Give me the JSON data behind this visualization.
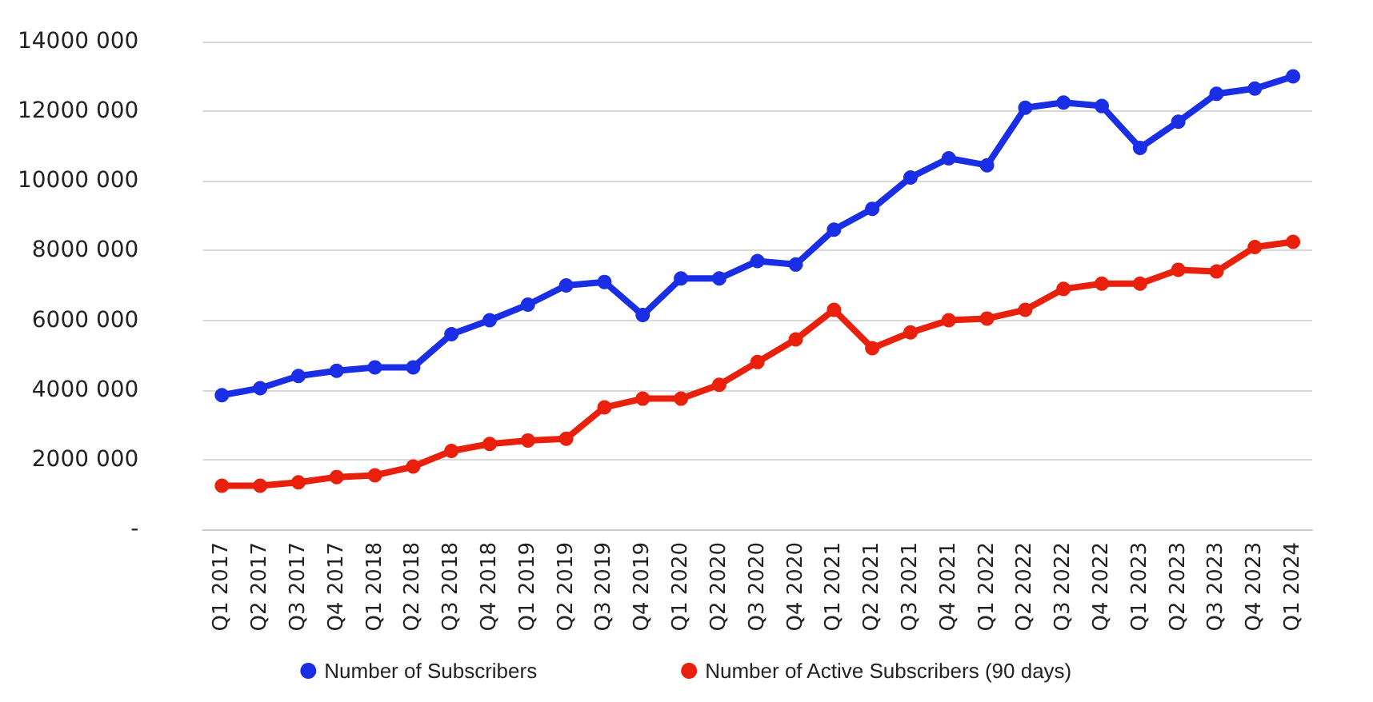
{
  "chart_data": {
    "type": "line",
    "categories": [
      "Q1 2017",
      "Q2 2017",
      "Q3 2017",
      "Q4 2017",
      "Q1 2018",
      "Q2 2018",
      "Q3 2018",
      "Q4 2018",
      "Q1 2019",
      "Q2 2019",
      "Q3 2019",
      "Q4 2019",
      "Q1 2020",
      "Q2 2020",
      "Q3 2020",
      "Q4 2020",
      "Q1 2021",
      "Q2 2021",
      "Q3 2021",
      "Q4 2021",
      "Q1 2022",
      "Q2 2022",
      "Q3 2022",
      "Q4 2022",
      "Q1 2023",
      "Q2 2023",
      "Q3 2023",
      "Q4 2023",
      "Q1 2024"
    ],
    "series": [
      {
        "name": "Number of Subscribers",
        "color": "#1a2ee6",
        "values": [
          3850000,
          4050000,
          4400000,
          4550000,
          4650000,
          4650000,
          5600000,
          6000000,
          6450000,
          7000000,
          7100000,
          6150000,
          7200000,
          7200000,
          7700000,
          7600000,
          8600000,
          9200000,
          10100000,
          10650000,
          10450000,
          12100000,
          12250000,
          12150000,
          10950000,
          11700000,
          12500000,
          12650000,
          13000000
        ]
      },
      {
        "name": "Number of Active Subscribers (90 days)",
        "color": "#e8200c",
        "values": [
          1250000,
          1250000,
          1350000,
          1500000,
          1550000,
          1800000,
          2250000,
          2450000,
          2550000,
          2600000,
          3500000,
          3750000,
          3750000,
          4150000,
          4800000,
          5450000,
          6300000,
          5200000,
          5650000,
          6000000,
          6050000,
          6300000,
          6900000,
          7050000,
          7050000,
          7450000,
          7400000,
          8100000,
          8250000
        ]
      }
    ],
    "ylim": [
      0,
      14000000
    ],
    "yticks": [
      {
        "value": 0,
        "label": "-"
      },
      {
        "value": 2000000,
        "label": "2000 000"
      },
      {
        "value": 4000000,
        "label": "4000 000"
      },
      {
        "value": 6000000,
        "label": "6000 000"
      },
      {
        "value": 8000000,
        "label": "8000 000"
      },
      {
        "value": 10000000,
        "label": "10000 000"
      },
      {
        "value": 12000000,
        "label": "12000 000"
      },
      {
        "value": 14000000,
        "label": "14000 000"
      }
    ],
    "grid": "y",
    "legend": "bottom",
    "marker": "circle",
    "line_style": "solid"
  }
}
